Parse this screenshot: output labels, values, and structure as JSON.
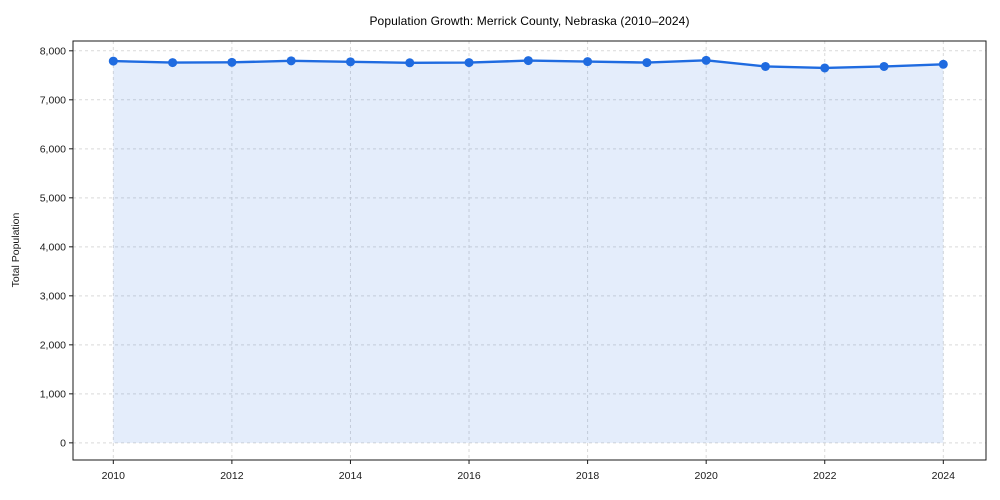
{
  "chart_data": {
    "type": "line",
    "title": "Population Growth: Merrick County, Nebraska (2010–2024)",
    "xlabel": "",
    "ylabel": "Total Population",
    "x": [
      2010,
      2011,
      2012,
      2013,
      2014,
      2015,
      2016,
      2017,
      2018,
      2019,
      2020,
      2021,
      2022,
      2023,
      2024
    ],
    "series": [
      {
        "name": "Total Population",
        "values": [
          7790,
          7760,
          7765,
          7795,
          7775,
          7755,
          7760,
          7800,
          7780,
          7760,
          7805,
          7680,
          7650,
          7680,
          7725
        ]
      }
    ],
    "xticks": [
      2010,
      2012,
      2014,
      2016,
      2018,
      2020,
      2022,
      2024
    ],
    "yticks": [
      0,
      1000,
      2000,
      3000,
      4000,
      5000,
      6000,
      7000,
      8000
    ],
    "xtick_labels": [
      "2010",
      "2012",
      "2014",
      "2016",
      "2018",
      "2020",
      "2022",
      "2024"
    ],
    "ytick_labels": [
      "0",
      "1,000",
      "2,000",
      "3,000",
      "4,000",
      "5,000",
      "6,000",
      "7,000",
      "8,000"
    ],
    "xlim": [
      2009.32,
      2024.72
    ],
    "ylim": [
      0,
      8000
    ],
    "grid": true,
    "grid_style": "dashed",
    "legend": "none",
    "marker": "circle",
    "area_fill": true,
    "colors": {
      "line": "#1f6be0",
      "marker": "#1f6be0",
      "fill": "rgba(31, 107, 224, 0.12)",
      "grid": "#d9d9d9",
      "axis": "#1a1a1a",
      "tick_label": "#1a1a1a",
      "title": "#000000"
    }
  }
}
